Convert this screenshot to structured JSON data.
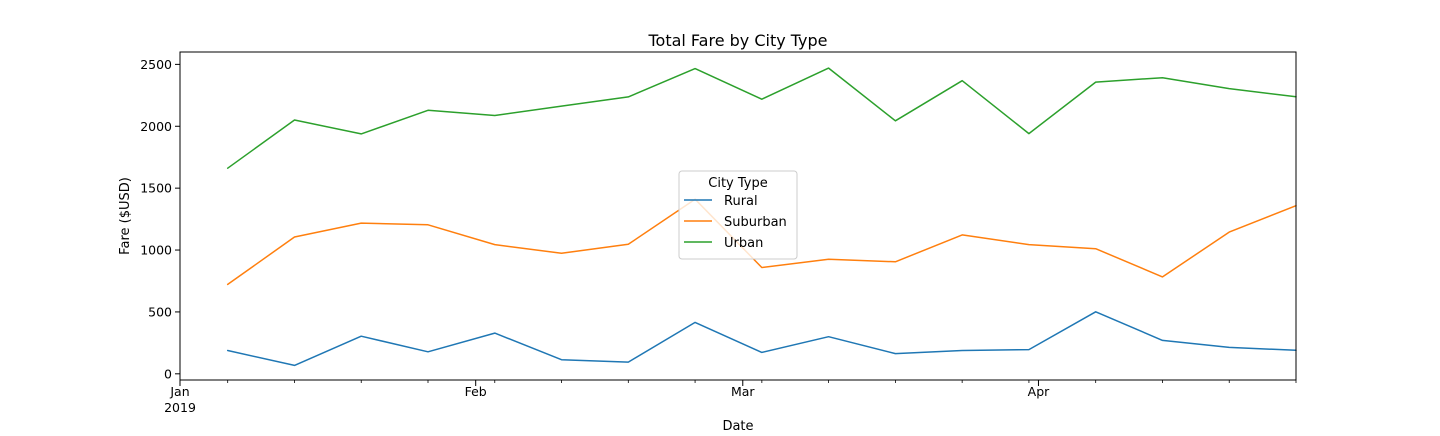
{
  "chart_data": {
    "type": "line",
    "title": "Total Fare by City Type",
    "xlabel": "Date",
    "ylabel": "Fare ($USD)",
    "x": [
      "2019-01-06",
      "2019-01-13",
      "2019-01-20",
      "2019-01-27",
      "2019-02-03",
      "2019-02-10",
      "2019-02-17",
      "2019-02-24",
      "2019-03-03",
      "2019-03-10",
      "2019-03-17",
      "2019-03-24",
      "2019-03-31",
      "2019-04-07",
      "2019-04-14",
      "2019-04-21",
      "2019-04-28"
    ],
    "ylim": [
      -50,
      2600
    ],
    "yticks": [
      0,
      500,
      1000,
      1500,
      2000,
      2500
    ],
    "xtick_labels": [
      {
        "date": "2019-01-01",
        "label": "Jan",
        "sublabel": "2019"
      },
      {
        "date": "2019-02-01",
        "label": "Feb",
        "sublabel": ""
      },
      {
        "date": "2019-03-01",
        "label": "Mar",
        "sublabel": ""
      },
      {
        "date": "2019-04-01",
        "label": "Apr",
        "sublabel": ""
      }
    ],
    "xlim": [
      "2019-01-01",
      "2019-04-28"
    ],
    "series": [
      {
        "name": "Rural",
        "color": "#1f77b4",
        "values": [
          188,
          68,
          304,
          178,
          329,
          114,
          95,
          415,
          173,
          300,
          163,
          188,
          196,
          501,
          270,
          213,
          190
        ]
      },
      {
        "name": "Suburban",
        "color": "#ff7f0e",
        "values": [
          722,
          1105,
          1218,
          1204,
          1044,
          974,
          1046,
          1411,
          859,
          925,
          905,
          1122,
          1044,
          1011,
          783,
          1145,
          1358
        ]
      },
      {
        "name": "Urban",
        "color": "#2ca02c",
        "values": [
          1661,
          2051,
          1938,
          2129,
          2087,
          2163,
          2237,
          2466,
          2219,
          2470,
          2044,
          2368,
          1941,
          2357,
          2392,
          2304,
          2238
        ]
      }
    ],
    "legend": {
      "title": "City Type",
      "placement": "center"
    },
    "grid": false
  }
}
